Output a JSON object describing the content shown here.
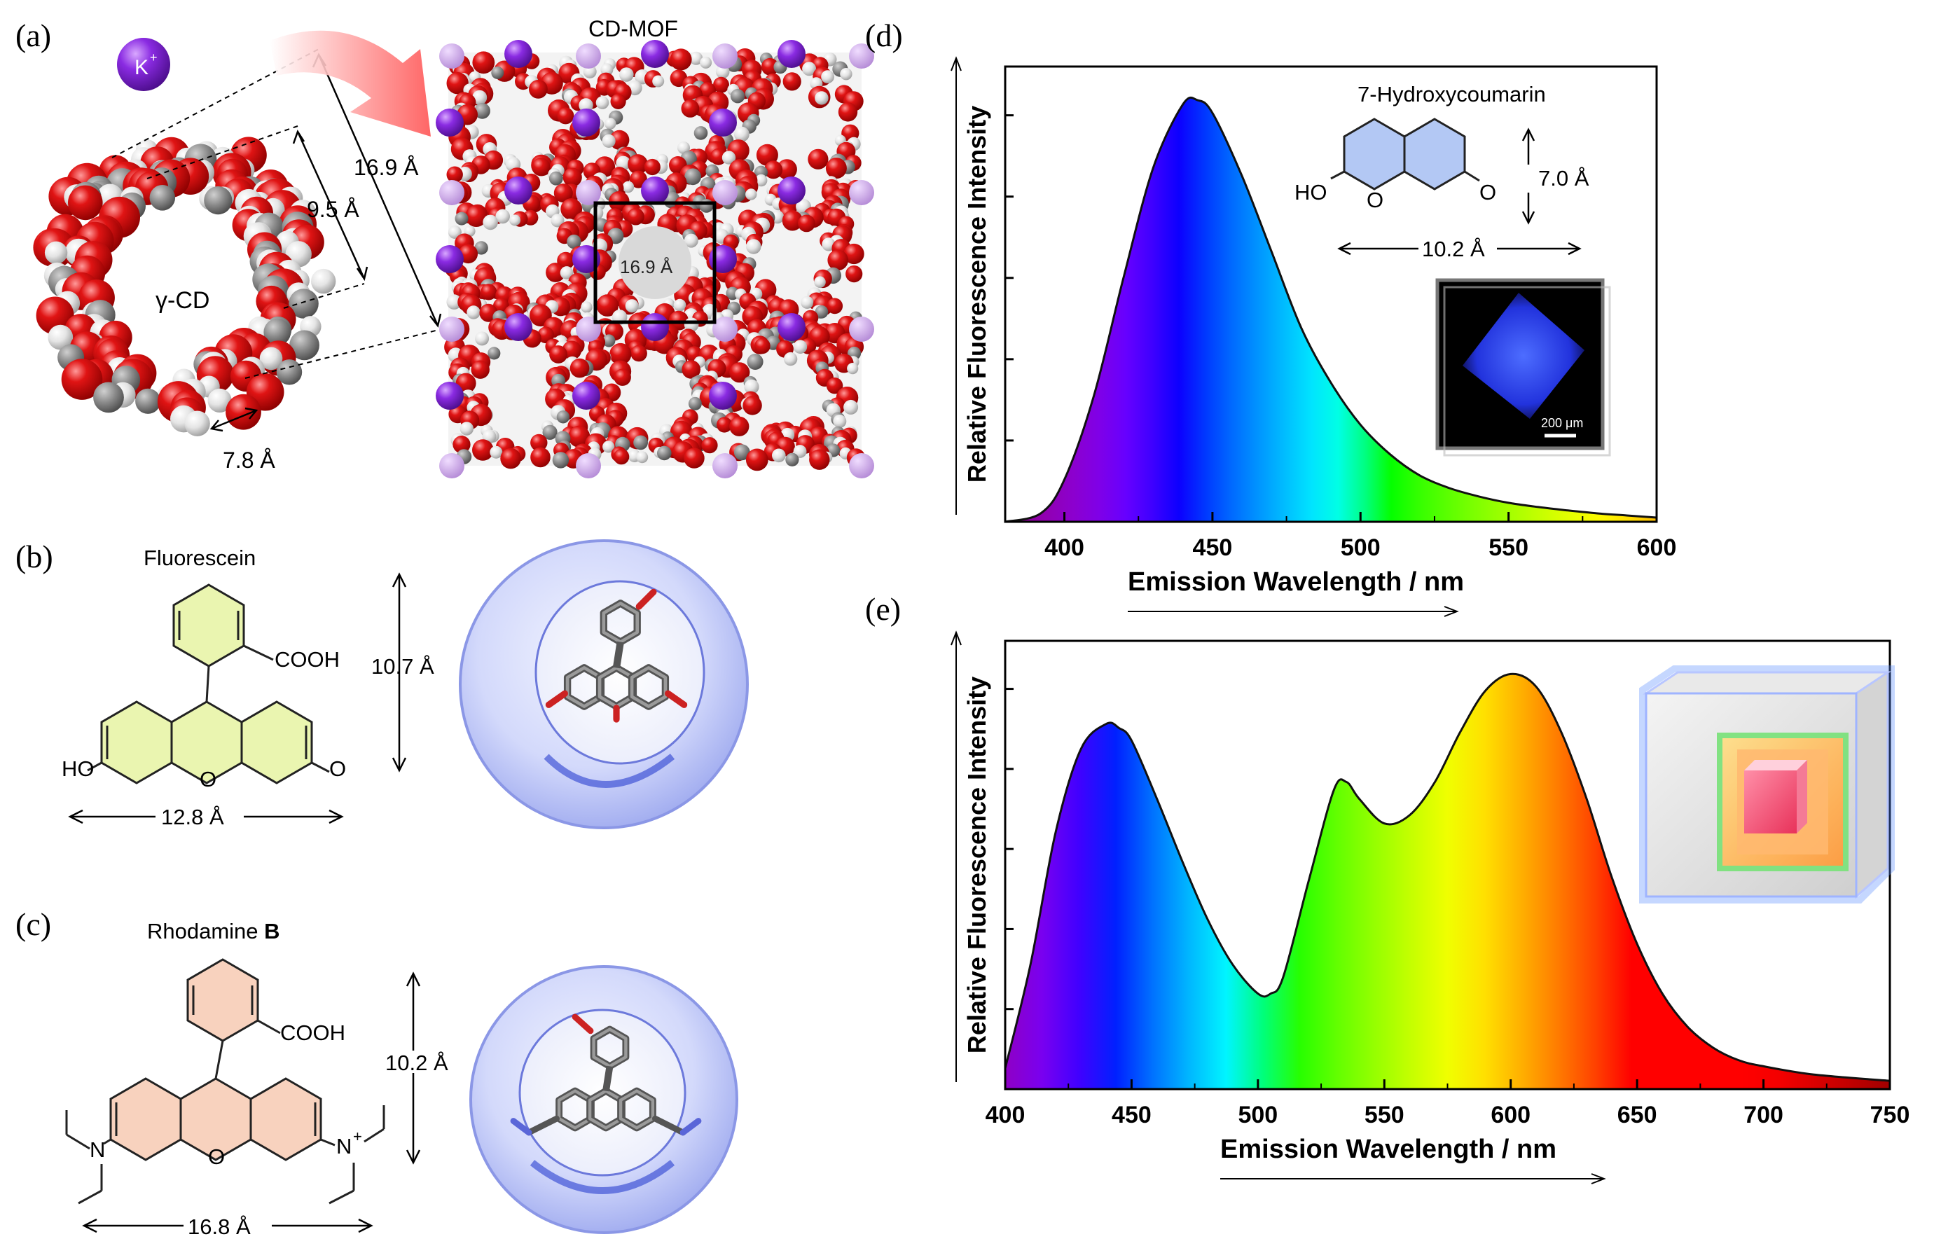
{
  "figure": {
    "panel_labels": {
      "a": "(a)",
      "b": "(b)",
      "c": "(c)",
      "d": "(d)",
      "e": "(e)"
    }
  },
  "panel_a": {
    "ion_label": "K",
    "ion_superscript": "+",
    "cd_label": "γ-CD",
    "mof_label": "CD-MOF",
    "dim_outer": "16.9 Å",
    "dim_inner": "9.5 Å",
    "dim_depth": "7.8 Å",
    "dim_cavity": "16.9 Å",
    "colors": {
      "oxygen": "#dd1111",
      "hydrogen": "#e8e8e8",
      "carbon": "#8a8a8a",
      "potassium": "#8a2be2"
    }
  },
  "panel_b": {
    "name": "Fluorescein",
    "group_cooh": "COOH",
    "ho": "HO",
    "o_ring": "O",
    "o_keto": "O",
    "dim_height": "10.7 Å",
    "dim_width": "12.8 Å",
    "ring_fill": "#eaf5b0"
  },
  "panel_c": {
    "name": "Rhodamine ",
    "name_bold": "B",
    "group_cooh": "COOH",
    "n_left": "N",
    "n_right": "N",
    "n_charge": "+",
    "o_ring": "O",
    "dim_height": "10.2 Å",
    "dim_width": "16.8 Å",
    "ring_fill": "#f8d2be"
  },
  "chart_data": [
    {
      "panel": "d",
      "type": "area",
      "title": "",
      "xlabel": "Emission Wavelength / nm",
      "ylabel": "Relative Fluorescence Intensity",
      "xlim": [
        380,
        600
      ],
      "ylim": [
        0,
        1.08
      ],
      "x_ticks": [
        400,
        450,
        500,
        550,
        600
      ],
      "y_ticks_unlabeled": 5,
      "fill": "visible-spectrum gradient by wavelength",
      "series": [
        {
          "x": [
            380,
            392,
            400,
            410,
            420,
            430,
            440,
            445,
            450,
            460,
            470,
            480,
            490,
            500,
            510,
            520,
            530,
            540,
            550,
            560,
            570,
            580,
            590,
            600
          ],
          "y": [
            0.0,
            0.02,
            0.1,
            0.3,
            0.58,
            0.84,
            0.99,
            1.0,
            0.97,
            0.82,
            0.64,
            0.46,
            0.33,
            0.23,
            0.16,
            0.11,
            0.08,
            0.06,
            0.045,
            0.035,
            0.027,
            0.02,
            0.015,
            0.01
          ]
        }
      ],
      "inset": {
        "molecule_name": "7-Hydroxycoumarin",
        "ho": "HO",
        "o_ring": "O",
        "o_keto": "O",
        "dim_height": "7.0 Å",
        "dim_width": "10.2 Å",
        "scale_bar": "200 μm",
        "ring_fill": "#b3c8f4"
      }
    },
    {
      "panel": "e",
      "type": "area",
      "title": "",
      "xlabel": "Emission Wavelength / nm",
      "ylabel": "Relative Fluorescence Intensity",
      "xlim": [
        400,
        750
      ],
      "ylim": [
        0,
        1.08
      ],
      "x_ticks": [
        400,
        450,
        500,
        550,
        600,
        650,
        700,
        750
      ],
      "y_ticks_unlabeled": 5,
      "fill": "visible-spectrum gradient by wavelength",
      "series": [
        {
          "x": [
            400,
            410,
            420,
            430,
            440,
            445,
            450,
            460,
            470,
            480,
            490,
            500,
            505,
            510,
            520,
            530,
            535,
            540,
            550,
            560,
            570,
            580,
            590,
            600,
            610,
            620,
            630,
            640,
            650,
            660,
            670,
            680,
            690,
            700,
            720,
            750
          ],
          "y": [
            0.05,
            0.3,
            0.62,
            0.82,
            0.88,
            0.87,
            0.84,
            0.7,
            0.55,
            0.41,
            0.3,
            0.23,
            0.23,
            0.27,
            0.5,
            0.72,
            0.74,
            0.7,
            0.64,
            0.66,
            0.74,
            0.86,
            0.96,
            1.0,
            0.97,
            0.86,
            0.7,
            0.51,
            0.35,
            0.23,
            0.15,
            0.1,
            0.07,
            0.055,
            0.035,
            0.02
          ]
        }
      ]
    }
  ]
}
